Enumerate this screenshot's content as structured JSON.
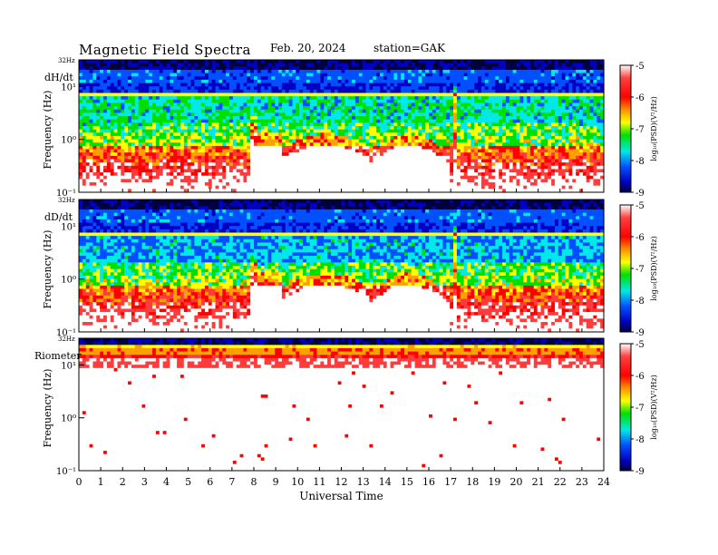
{
  "header": {
    "title": "Magnetic  Field  Spectra",
    "date": "Feb. 20, 2024",
    "station": "station=GAK"
  },
  "colors": {
    "colormap": [
      "#ffffff",
      "#ff3b3b",
      "#ff0000",
      "#ffa000",
      "#ffff00",
      "#00e000",
      "#00e8e8",
      "#0050ff",
      "#0000c0",
      "#000040"
    ]
  },
  "chart_data": [
    {
      "type": "heatmap",
      "panel_label": "dH/dt",
      "ylabel": "Frequency  (Hz)",
      "xlabel": "",
      "top_label": "32Hz",
      "y_ticks": [
        "10⁻¹",
        "10⁰",
        "10¹"
      ],
      "y_scale": "log",
      "ylim": [
        0.1,
        32
      ],
      "x_ticks": [
        "0",
        "1",
        "2",
        "3",
        "4",
        "5",
        "6",
        "7",
        "8",
        "9",
        "10",
        "11",
        "12",
        "13",
        "14",
        "15",
        "16",
        "17",
        "18",
        "19",
        "20",
        "21",
        "22",
        "23",
        "24"
      ],
      "xlim": [
        0,
        24
      ],
      "colorbar": {
        "label": "log₁₀(PSD)(V²/Hz)",
        "ticks": [
          "-5",
          "-6",
          "-7",
          "-8",
          "-9"
        ],
        "range": [
          -9,
          -5
        ]
      }
    },
    {
      "type": "heatmap",
      "panel_label": "dD/dt",
      "ylabel": "Frequency  (Hz)",
      "xlabel": "",
      "top_label": "32Hz",
      "y_ticks": [
        "10⁻¹",
        "10⁰",
        "10¹"
      ],
      "y_scale": "log",
      "ylim": [
        0.1,
        32
      ],
      "x_ticks": [
        "0",
        "1",
        "2",
        "3",
        "4",
        "5",
        "6",
        "7",
        "8",
        "9",
        "10",
        "11",
        "12",
        "13",
        "14",
        "15",
        "16",
        "17",
        "18",
        "19",
        "20",
        "21",
        "22",
        "23",
        "24"
      ],
      "xlim": [
        0,
        24
      ],
      "colorbar": {
        "label": "log₁₀(PSD)(V²/Hz)",
        "ticks": [
          "-5",
          "-6",
          "-7",
          "-8",
          "-9"
        ],
        "range": [
          -9,
          -5
        ]
      }
    },
    {
      "type": "heatmap",
      "panel_label": "Riometer",
      "ylabel": "Frequency  (Hz)",
      "xlabel": "Universal  Time",
      "top_label": "32Hz",
      "y_ticks": [
        "10⁻¹",
        "10⁰",
        "10¹"
      ],
      "y_scale": "log",
      "ylim": [
        0.1,
        32
      ],
      "x_ticks": [
        "0",
        "1",
        "2",
        "3",
        "4",
        "5",
        "6",
        "7",
        "8",
        "9",
        "10",
        "11",
        "12",
        "13",
        "14",
        "15",
        "16",
        "17",
        "18",
        "19",
        "20",
        "21",
        "22",
        "23",
        "24"
      ],
      "xlim": [
        0,
        24
      ],
      "colorbar": {
        "label": "log₁₀(PSD)(V²/Hz)",
        "ticks": [
          "-5",
          "-6",
          "-7",
          "-8",
          "-9"
        ],
        "range": [
          -9,
          -5
        ]
      }
    }
  ]
}
